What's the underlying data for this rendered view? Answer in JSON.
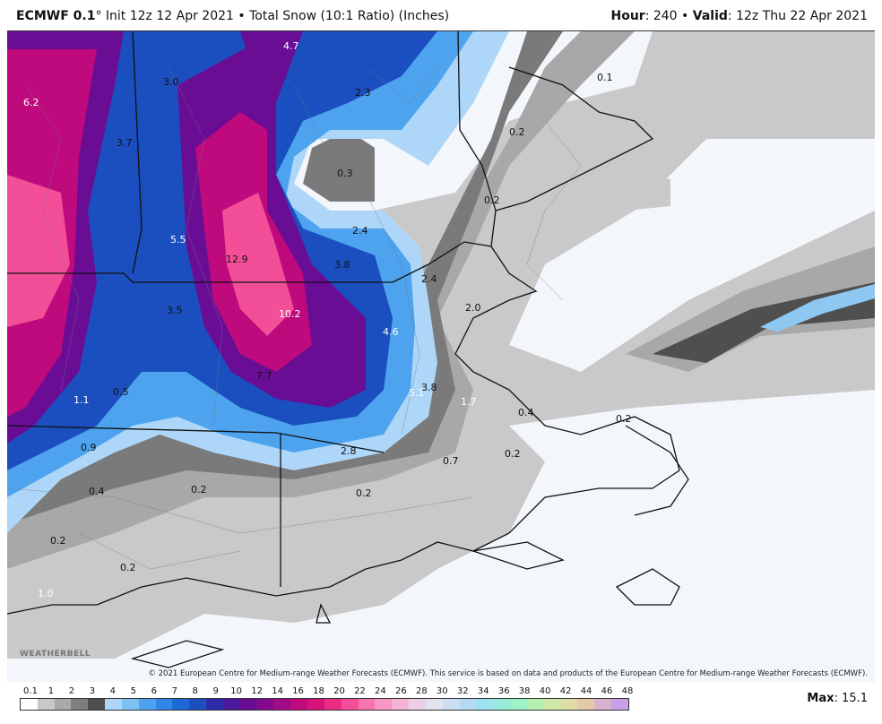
{
  "header": {
    "model": "ECMWF 0.1",
    "init": "° Init 12z 12 Apr 2021",
    "bullet": " • ",
    "product": "Total Snow (10:1 Ratio) (Inches)",
    "hour_label": "Hour",
    "hour_value": ": 240",
    "valid_label": "Valid",
    "valid_value": ": 12z Thu 22 Apr 2021"
  },
  "map": {
    "credit": "© 2021 European Centre for Medium-range Weather Forecasts (ECMWF). This service is based on data and products of the European Centre for Medium-range Weather Forecasts (ECMWF).",
    "logo": "WEATHERBELL",
    "values": [
      {
        "v": "4.7",
        "light": true
      },
      {
        "v": "3.0",
        "light": false
      },
      {
        "v": "6.2",
        "light": true
      },
      {
        "v": "2.3",
        "light": false
      },
      {
        "v": "0.1",
        "light": false
      },
      {
        "v": "3.7",
        "light": false
      },
      {
        "v": "0.3",
        "light": false
      },
      {
        "v": "0.2",
        "light": false
      },
      {
        "v": "0.2",
        "light": false
      },
      {
        "v": "5.5",
        "light": true
      },
      {
        "v": "2.4",
        "light": false
      },
      {
        "v": "12.9",
        "light": false
      },
      {
        "v": "3.8",
        "light": false
      },
      {
        "v": "2.4",
        "light": false
      },
      {
        "v": "10.2",
        "light": true
      },
      {
        "v": "2.0",
        "light": false
      },
      {
        "v": "3.5",
        "light": false
      },
      {
        "v": "4.6",
        "light": true
      },
      {
        "v": "7.7",
        "light": false
      },
      {
        "v": "5.1",
        "light": true
      },
      {
        "v": "3.8",
        "light": false
      },
      {
        "v": "1.7",
        "light": true
      },
      {
        "v": "1.1",
        "light": true
      },
      {
        "v": "0.5",
        "light": false
      },
      {
        "v": "0.4",
        "light": false
      },
      {
        "v": "0.2",
        "light": false
      },
      {
        "v": "0.9",
        "light": false
      },
      {
        "v": "2.8",
        "light": false
      },
      {
        "v": "0.2",
        "light": false
      },
      {
        "v": "0.7",
        "light": false
      },
      {
        "v": "0.4",
        "light": false
      },
      {
        "v": "0.2",
        "light": false
      },
      {
        "v": "0.2",
        "light": false
      },
      {
        "v": "0.2",
        "light": false
      },
      {
        "v": "0.2",
        "light": false
      },
      {
        "v": "1.0",
        "light": true
      }
    ]
  },
  "legend": {
    "ticks": [
      "0.1",
      "1",
      "2",
      "3",
      "4",
      "5",
      "6",
      "7",
      "8",
      "9",
      "10",
      "12",
      "14",
      "16",
      "18",
      "20",
      "22",
      "24",
      "26",
      "28",
      "30",
      "32",
      "34",
      "36",
      "38",
      "40",
      "42",
      "44",
      "46",
      "48"
    ],
    "colors": [
      "#ffffff",
      "#c8c8c8",
      "#a9a9a9",
      "#7f7f7f",
      "#4f4f4f",
      "#aed6f8",
      "#7cc0f4",
      "#4da3ee",
      "#2f86e6",
      "#1c68d8",
      "#1b4fbf",
      "#2d2ba8",
      "#4b1a9e",
      "#6a0d95",
      "#85098e",
      "#a00b86",
      "#be0a7c",
      "#d7137a",
      "#ea2c85",
      "#f24f98",
      "#f774ae",
      "#f996c3",
      "#f4b5d5",
      "#eccfe4",
      "#e2e2f0",
      "#ccdff2",
      "#b3dbf3",
      "#9fe2ef",
      "#97ecdc",
      "#9bf3c7",
      "#b6efb0",
      "#d0e8a8",
      "#dfdca5",
      "#e4c8a8",
      "#d7b3d0",
      "#c8a0e6"
    ],
    "max_label": "Max",
    "max_value": ": 15.1"
  }
}
